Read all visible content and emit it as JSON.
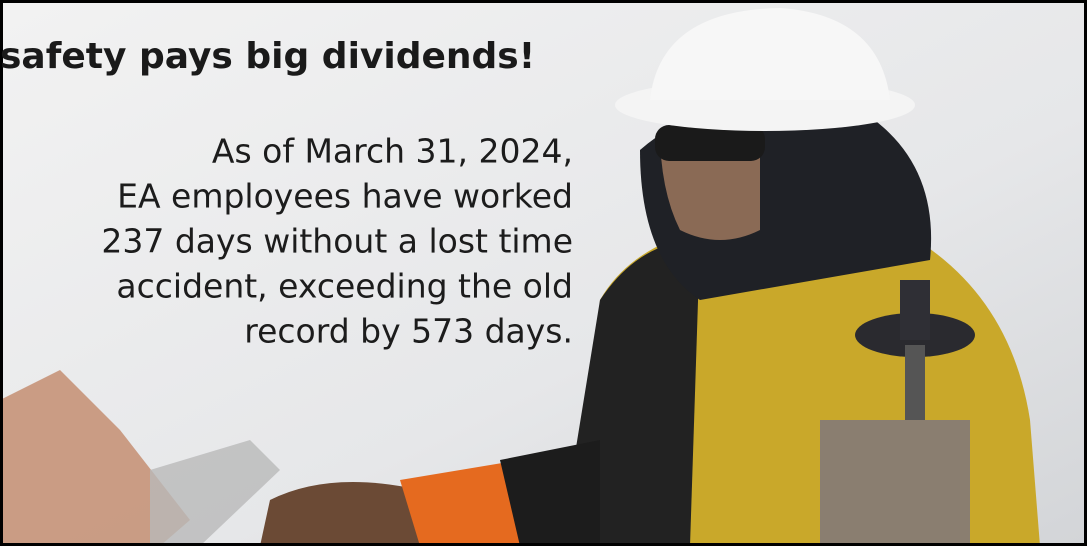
{
  "headline": "safety pays big dividends!",
  "body_lines": [
    "As of March 31, 2024,",
    "EA employees have worked",
    "237 days without a lost time",
    "accident, exceeding the old",
    "record by 573 days."
  ]
}
